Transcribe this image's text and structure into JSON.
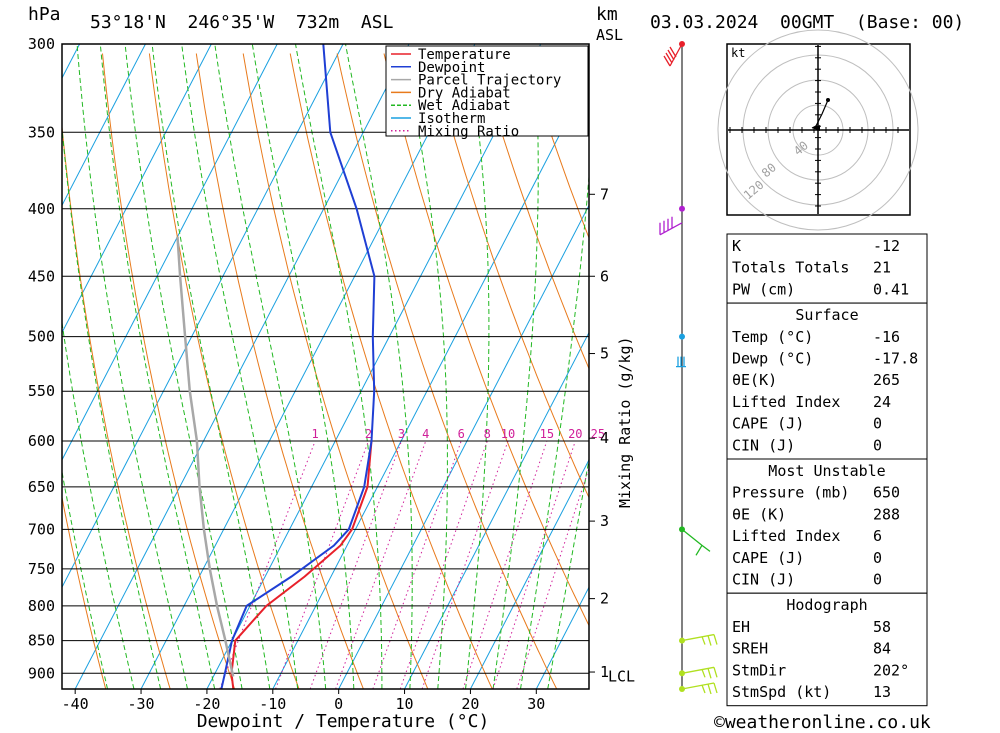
{
  "header": {
    "pressure_unit": "hPa",
    "location": "53°18'N  246°35'W  732m  ASL",
    "km_label": "km",
    "asl_label": "ASL",
    "datetime": "03.03.2024  00GMT  (Base: 00)"
  },
  "legend": [
    {
      "label": "Temperature",
      "color": "#e8202a",
      "style": "solid"
    },
    {
      "label": "Dewpoint",
      "color": "#1f3fd4",
      "style": "solid"
    },
    {
      "label": "Parcel Trajectory",
      "color": "#a8a8a8",
      "style": "solid"
    },
    {
      "label": "Dry Adiabat",
      "color": "#e87a1c",
      "style": "solid"
    },
    {
      "label": "Wet Adiabat",
      "color": "#22b822",
      "style": "dashed"
    },
    {
      "label": "Isotherm",
      "color": "#1aa0e0",
      "style": "solid"
    },
    {
      "label": "Mixing Ratio",
      "color": "#d0209a",
      "style": "dotted"
    }
  ],
  "chart_data": {
    "type": "line",
    "xlabel": "Dewpoint / Temperature (°C)",
    "x_ticks": [
      "-40",
      "-30",
      "-20",
      "-10",
      "0",
      "10",
      "20",
      "30"
    ],
    "xlim": [
      -42,
      38
    ],
    "pressure_ticks": [
      "300",
      "350",
      "400",
      "450",
      "500",
      "550",
      "600",
      "650",
      "700",
      "750",
      "800",
      "850",
      "900"
    ],
    "ylim_hpa": [
      300,
      925
    ],
    "y_scale": "log",
    "skew_deg_per_hpa_log": 45,
    "km_ticks": [
      {
        "label": "7",
        "pressure": 390
      },
      {
        "label": "6",
        "pressure": 450
      },
      {
        "label": "5",
        "pressure": 515
      },
      {
        "label": "4",
        "pressure": 597
      },
      {
        "label": "3",
        "pressure": 690
      },
      {
        "label": "2",
        "pressure": 790
      },
      {
        "label": "1",
        "pressure": 898
      }
    ],
    "lcl_label": "LCL",
    "lcl_pressure": 905,
    "mixing_ratio_axis_label": "Mixing Ratio (g/kg)",
    "mixing_ratio_labels": [
      "1",
      "2",
      "3",
      "4",
      "6",
      "8",
      "10",
      "15",
      "20",
      "25"
    ],
    "series": [
      {
        "name": "Temperature",
        "color": "#e8202a",
        "points": [
          [
            925,
            -16.0
          ],
          [
            900,
            -17.5
          ],
          [
            850,
            -19.5
          ],
          [
            800,
            -17.5
          ],
          [
            760,
            -14.0
          ],
          [
            720,
            -11.0
          ],
          [
            700,
            -10.5
          ],
          [
            650,
            -11.5
          ],
          [
            600,
            -14.5
          ]
        ]
      },
      {
        "name": "Dewpoint",
        "color": "#1f3fd4",
        "points": [
          [
            925,
            -17.8
          ],
          [
            900,
            -18.5
          ],
          [
            850,
            -20.0
          ],
          [
            800,
            -20.5
          ],
          [
            760,
            -16.0
          ],
          [
            720,
            -12.0
          ],
          [
            700,
            -11.0
          ],
          [
            650,
            -12.0
          ],
          [
            600,
            -14.5
          ],
          [
            550,
            -18.0
          ],
          [
            500,
            -22.5
          ],
          [
            450,
            -27.0
          ],
          [
            400,
            -35.0
          ],
          [
            350,
            -45.0
          ],
          [
            300,
            -53.0
          ]
        ]
      },
      {
        "name": "Parcel Trajectory",
        "color": "#a8a8a8",
        "points": [
          [
            905,
            -17.0
          ],
          [
            850,
            -21.0
          ],
          [
            800,
            -25.0
          ],
          [
            750,
            -29.0
          ],
          [
            700,
            -33.0
          ],
          [
            650,
            -37.0
          ],
          [
            600,
            -41.0
          ],
          [
            550,
            -46.0
          ],
          [
            500,
            -51.0
          ],
          [
            450,
            -56.5
          ],
          [
            420,
            -60.0
          ]
        ]
      }
    ],
    "wind_profile": [
      {
        "pressure": 300,
        "color": "#e8202a"
      },
      {
        "pressure": 400,
        "color": "#b020d0"
      },
      {
        "pressure": 500,
        "color": "#1aa0e0"
      },
      {
        "pressure": 700,
        "color": "#22b822"
      },
      {
        "pressure": 850,
        "color": "#b0e020"
      },
      {
        "pressure": 900,
        "color": "#b0e020"
      },
      {
        "pressure": 925,
        "color": "#b0e020"
      }
    ]
  },
  "hodograph": {
    "unit": "kt",
    "ring_labels": [
      "40",
      "80",
      "120"
    ]
  },
  "indices": {
    "general": [
      {
        "label": "K",
        "value": "-12"
      },
      {
        "label": "Totals Totals",
        "value": "21"
      },
      {
        "label": "PW (cm)",
        "value": "0.41"
      }
    ],
    "surface": {
      "title": "Surface",
      "rows": [
        {
          "label": "Temp (°C)",
          "value": "-16"
        },
        {
          "label": "Dewp (°C)",
          "value": "-17.8"
        },
        {
          "label": "θE(K)",
          "value": "265"
        },
        {
          "label": "Lifted Index",
          "value": "24"
        },
        {
          "label": "CAPE (J)",
          "value": "0"
        },
        {
          "label": "CIN (J)",
          "value": "0"
        }
      ]
    },
    "most_unstable": {
      "title": "Most Unstable",
      "rows": [
        {
          "label": "Pressure (mb)",
          "value": "650"
        },
        {
          "label": "θE (K)",
          "value": "288"
        },
        {
          "label": "Lifted Index",
          "value": "6"
        },
        {
          "label": "CAPE (J)",
          "value": "0"
        },
        {
          "label": "CIN (J)",
          "value": "0"
        }
      ]
    },
    "hodograph_table": {
      "title": "Hodograph",
      "rows": [
        {
          "label": "EH",
          "value": "58"
        },
        {
          "label": "SREH",
          "value": "84"
        },
        {
          "label": "StmDir",
          "value": "202°"
        },
        {
          "label": "StmSpd (kt)",
          "value": "13"
        }
      ]
    }
  },
  "footer": {
    "copyright": "©weatheronline.co.uk"
  }
}
